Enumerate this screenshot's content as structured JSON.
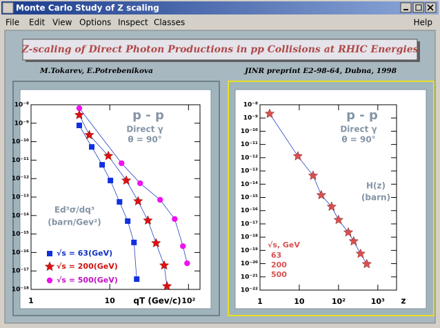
{
  "window": {
    "title": "Monte Carlo Study of Z scaling",
    "menu": [
      "File",
      "Edit",
      "View",
      "Options",
      "Inspect",
      "Classes"
    ],
    "help": "Help"
  },
  "banner": {
    "title": "Z-scaling of Direct Photon Productions in pp Collisions at RHIC Energies",
    "authors": "M.Tokarev, E.Potrebenikova",
    "preprint": "JINR preprint E2-98-64, Dubna, 1998"
  },
  "chart_data": [
    {
      "type": "scatter",
      "log_x": true,
      "log_y": true,
      "x_label": "qT (Gev/c)",
      "y_label": [
        "Ed³σ/dq³",
        "(barn/Gev²)"
      ],
      "annotations": [
        "p - p",
        "Direct γ",
        "θ = 90°"
      ],
      "xlim": [
        1,
        140
      ],
      "xticks": [
        1,
        10,
        {
          "value": 100,
          "label": "10²"
        }
      ],
      "ylim": [
        1e-18,
        1e-08
      ],
      "yticks": [
        {
          "value": 1e-18,
          "label": "10⁻¹⁸"
        },
        {
          "value": 1e-17,
          "label": "10⁻¹⁷"
        },
        {
          "value": 1e-16,
          "label": "10⁻¹⁶"
        },
        {
          "value": 1e-15,
          "label": "10⁻¹⁵"
        },
        {
          "value": 1e-14,
          "label": "10⁻¹⁴"
        },
        {
          "value": 1e-13,
          "label": "10⁻¹³"
        },
        {
          "value": 1e-12,
          "label": "10⁻¹²"
        },
        {
          "value": 1e-11,
          "label": "10⁻¹¹"
        },
        {
          "value": 1e-10,
          "label": "10⁻¹⁰"
        },
        {
          "value": 1e-09,
          "label": "10⁻⁹"
        },
        {
          "value": 1e-08,
          "label": "10⁻⁸"
        }
      ],
      "line_color": "#2040c0",
      "series": [
        {
          "name": "√s = 63(GeV)",
          "color": "#1030e0",
          "marker": "square",
          "x": [
            4.1,
            5.9,
            8.0,
            10.2,
            13.3,
            16.9,
            20.3,
            22
          ],
          "values": [
            7.6e-10,
            5.2e-11,
            5.6e-12,
            7.9e-13,
            5.5e-14,
            5e-15,
            3.5e-16,
            3.6e-18
          ]
        },
        {
          "name": "√s = 200(GeV)",
          "color": "#e01010",
          "marker": "star",
          "x": [
            4.1,
            5.5,
            9.6,
            16.2,
            22.9,
            30.5,
            38.7,
            49.1,
            53.3
          ],
          "values": [
            2.8e-09,
            2.3e-10,
            1.7e-11,
            7.9e-13,
            6e-14,
            5.4e-15,
            3.2e-16,
            2e-17,
            1.5e-18
          ]
        },
        {
          "name": "√s = 500(GeV)",
          "color": "#f010f0",
          "marker": "circle",
          "x": [
            4.1,
            14.1,
            24.3,
            43.6,
            66.8,
            85,
            96.1
          ],
          "values": [
            6.5e-09,
            6.8e-12,
            5.6e-13,
            7.1e-14,
            6.5e-15,
            2.2e-16,
            2.6e-17
          ]
        }
      ]
    },
    {
      "type": "scatter",
      "log_x": true,
      "log_y": true,
      "x_label": "z",
      "y_label": [
        "H(z)",
        "(barn)"
      ],
      "annotations": [
        "p - p",
        "Direct γ",
        "θ = 90°"
      ],
      "legend_title": "√s, GeV",
      "legend_entries": [
        "63",
        "200",
        "500"
      ],
      "xlim": [
        1,
        3000
      ],
      "xticks": [
        1,
        10,
        {
          "value": 100,
          "label": "10²"
        },
        {
          "value": 1000,
          "label": "10³"
        }
      ],
      "ylim": [
        1e-22,
        1e-08
      ],
      "yticks": [
        {
          "value": 1e-22,
          "label": "10⁻²²"
        },
        {
          "value": 1e-21,
          "label": "10⁻²¹"
        },
        {
          "value": 1e-20,
          "label": "10⁻²⁰"
        },
        {
          "value": 1e-19,
          "label": "10⁻¹⁹"
        },
        {
          "value": 1e-18,
          "label": "10⁻¹⁸"
        },
        {
          "value": 1e-17,
          "label": "10⁻¹⁷"
        },
        {
          "value": 1e-16,
          "label": "10⁻¹⁶"
        },
        {
          "value": 1e-15,
          "label": "10⁻¹⁵"
        },
        {
          "value": 1e-14,
          "label": "10⁻¹⁴"
        },
        {
          "value": 1e-13,
          "label": "10⁻¹³"
        },
        {
          "value": 1e-12,
          "label": "10⁻¹²"
        },
        {
          "value": 1e-11,
          "label": "10⁻¹¹"
        },
        {
          "value": 1e-10,
          "label": "10⁻¹⁰"
        },
        {
          "value": 1e-09,
          "label": "10⁻⁹"
        },
        {
          "value": 1e-08,
          "label": "10⁻⁸"
        }
      ],
      "line_color": "#2040c0",
      "series": [
        {
          "color": "#d85050",
          "marker": "star",
          "x": [
            1.76,
            9.2,
            22.5,
            36.4,
            66.6,
            100,
            177,
            243,
            364,
            523
          ],
          "values": [
            2.1e-09,
            1.3e-12,
            4.4e-14,
            1.5e-15,
            2e-16,
            2e-17,
            2.3e-18,
            4.9e-19,
            5.6e-20,
            9.3e-21
          ]
        }
      ]
    }
  ]
}
